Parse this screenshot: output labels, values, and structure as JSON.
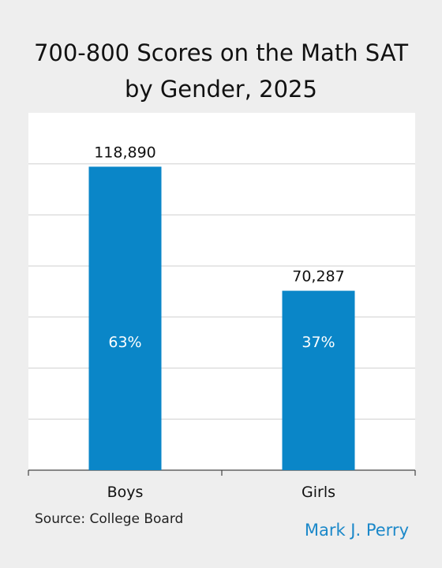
{
  "chart_data": {
    "type": "bar",
    "title": [
      "700-800 Scores on the Math SAT",
      "by Gender, 2025"
    ],
    "categories": [
      "Boys",
      "Girls"
    ],
    "values": [
      118890,
      70287
    ],
    "value_labels": [
      "118,890",
      "70,287"
    ],
    "share_labels": [
      "63%",
      "37%"
    ],
    "ylim": [
      0,
      140000
    ],
    "grid": true,
    "bar_color": "#0a86c8",
    "xlabel": "",
    "ylabel": ""
  },
  "source": "Source: College Board",
  "author": "Mark J. Perry",
  "colors": {
    "background": "#eeeeee",
    "plot_background": "#ffffff",
    "gridline": "#cfcfcf",
    "author": "#1b88c9"
  }
}
